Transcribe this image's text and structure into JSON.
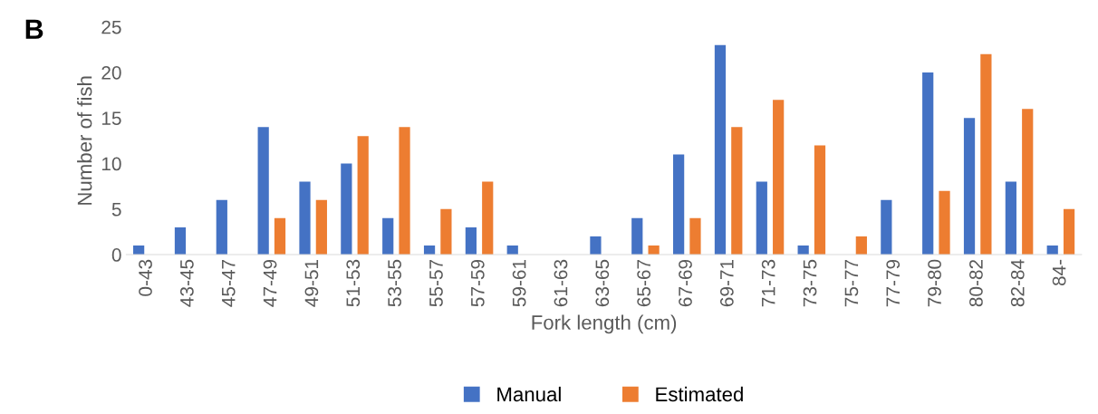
{
  "chart_data": {
    "type": "bar",
    "xlabel": "Fork length (cm)",
    "ylabel": "Number of fish",
    "annotations": [
      "B"
    ],
    "categories": [
      "0-43",
      "43-45",
      "45-47",
      "47-49",
      "49-51",
      "51-53",
      "53-55",
      "55-57",
      "57-59",
      "59-61",
      "61-63",
      "63-65",
      "65-67",
      "67-69",
      "69-71",
      "71-73",
      "73-75",
      "75-77",
      "77-79",
      "79-80",
      "80-82",
      "82-84",
      "84-"
    ],
    "series": [
      {
        "name": "Manual",
        "color": "#4472c4",
        "values": [
          1,
          3,
          6,
          14,
          8,
          10,
          4,
          1,
          3,
          1,
          0,
          2,
          4,
          11,
          23,
          8,
          1,
          0,
          6,
          20,
          15,
          8,
          1
        ]
      },
      {
        "name": "Estimated",
        "color": "#ed7d31",
        "values": [
          0,
          0,
          0,
          4,
          6,
          13,
          14,
          5,
          8,
          0,
          0,
          0,
          1,
          4,
          14,
          17,
          12,
          2,
          0,
          7,
          22,
          16,
          5
        ]
      }
    ],
    "ylim": [
      0,
      25
    ],
    "yticks": [
      0,
      5,
      10,
      15,
      20,
      25
    ],
    "grid": false,
    "legend": "bottom"
  }
}
